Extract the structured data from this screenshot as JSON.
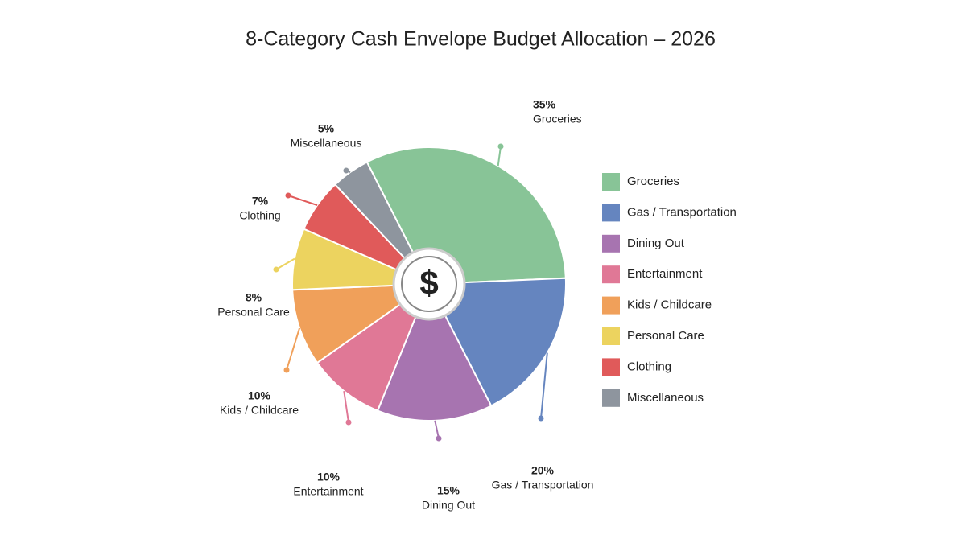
{
  "chart_data": {
    "type": "pie",
    "title": "8-Category Cash Envelope Budget Allocation – 2026",
    "center_label": "$",
    "categories": [
      "Groceries",
      "Gas / Transportation",
      "Dining Out",
      "Entertainment",
      "Kids / Childcare",
      "Personal Care",
      "Clothing",
      "Miscellaneous"
    ],
    "values": [
      35,
      20,
      15,
      10,
      10,
      8,
      7,
      5
    ],
    "value_labels": [
      "35%",
      "20%",
      "15%",
      "10%",
      "10%",
      "8%",
      "7%",
      "5%"
    ],
    "colors": [
      "#88c497",
      "#6585bf",
      "#a774b0",
      "#e07896",
      "#f0a05a",
      "#ecd35f",
      "#e05a5a",
      "#8e959e"
    ],
    "legend": "right"
  }
}
